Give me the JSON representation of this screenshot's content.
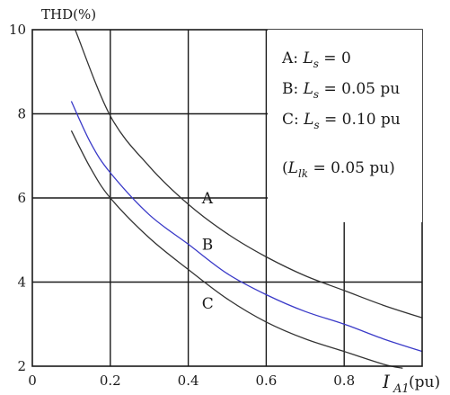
{
  "chart_data": {
    "type": "line",
    "ylabel": "THD(%)",
    "xlabel_symbol": "I",
    "xlabel_subscript": "A1",
    "xlabel_unit": "(pu)",
    "xlim": [
      0,
      1.0
    ],
    "ylim": [
      2,
      10
    ],
    "x_ticks": [
      "0",
      "0.2",
      "0.4",
      "0.6",
      "0.8"
    ],
    "y_ticks": [
      "2",
      "4",
      "6",
      "8",
      "10"
    ],
    "grid": true,
    "series": [
      {
        "name": "A",
        "color": "#333333",
        "x": [
          0.11,
          0.2,
          0.3,
          0.4,
          0.5,
          0.6,
          0.7,
          0.8,
          0.9,
          1.0
        ],
        "y": [
          10.0,
          7.95,
          6.75,
          5.85,
          5.15,
          4.6,
          4.15,
          3.8,
          3.45,
          3.15
        ]
      },
      {
        "name": "B",
        "color": "#3a3ac8",
        "x": [
          0.1,
          0.15,
          0.2,
          0.3,
          0.4,
          0.5,
          0.6,
          0.7,
          0.8,
          0.9,
          1.0
        ],
        "y": [
          8.3,
          7.3,
          6.6,
          5.6,
          4.9,
          4.2,
          3.7,
          3.3,
          3.0,
          2.65,
          2.35
        ]
      },
      {
        "name": "C",
        "color": "#333333",
        "x": [
          0.1,
          0.15,
          0.2,
          0.3,
          0.4,
          0.5,
          0.6,
          0.7,
          0.8,
          0.9,
          0.95
        ],
        "y": [
          7.6,
          6.7,
          6.0,
          5.05,
          4.3,
          3.6,
          3.05,
          2.65,
          2.35,
          2.05,
          1.95
        ]
      }
    ],
    "curve_labels": [
      {
        "text": "A",
        "series": "A"
      },
      {
        "text": "B",
        "series": "B"
      },
      {
        "text": "C",
        "series": "C"
      }
    ],
    "legend": {
      "placement": "top-right",
      "entries": [
        {
          "prefix": "A: ",
          "symbol": "L",
          "sub": "s",
          "rest": " = 0"
        },
        {
          "prefix": "B: ",
          "symbol": "L",
          "sub": "s",
          "rest": " = 0.05 pu"
        },
        {
          "prefix": "C: ",
          "symbol": "L",
          "sub": "s",
          "rest": " = 0.10 pu"
        }
      ],
      "note": {
        "prefix": "(",
        "symbol": "L",
        "sub": "lk",
        "rest": " = 0.05 pu)"
      }
    }
  }
}
